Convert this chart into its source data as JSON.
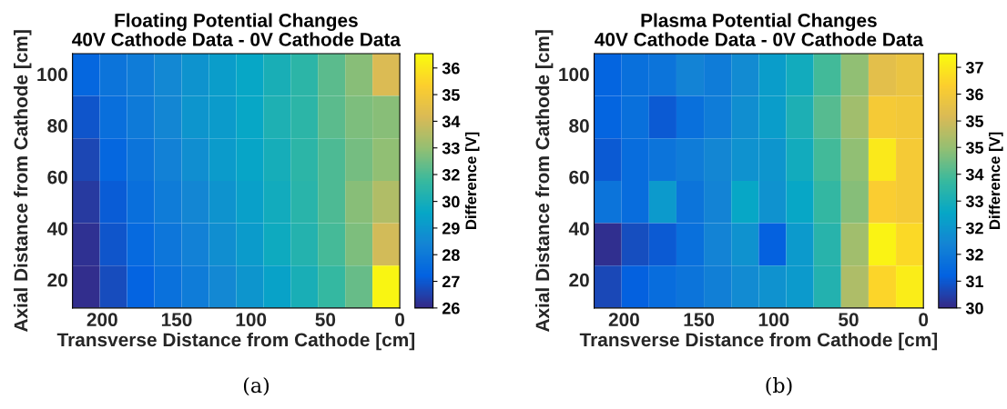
{
  "chart_data": [
    {
      "type": "heatmap",
      "title": "Floating Potential Changes\n40V Cathode Data - 0V Cathode Data",
      "xlabel": "Transverse Distance from Cathode [cm]",
      "ylabel": "Axial Distance from Cathode [cm]",
      "clabel": "Difference [V]",
      "xlim": [
        220,
        0
      ],
      "xticks": [
        200,
        150,
        100,
        50,
        0
      ],
      "ylim": [
        9,
        108
      ],
      "yticks": [
        20,
        40,
        60,
        80,
        100
      ],
      "clim": [
        26,
        36.6
      ],
      "cticks": [
        26,
        {
          "value": 27.11,
          "label": "27"
        },
        {
          "value": 28.22,
          "label": "28"
        },
        {
          "value": 29.33,
          "label": "29"
        },
        {
          "value": 30.44,
          "label": "30"
        },
        {
          "value": 31.56,
          "label": "32"
        },
        {
          "value": 32.67,
          "label": "33"
        },
        {
          "value": 33.78,
          "label": "34"
        },
        {
          "value": 34.89,
          "label": "35"
        },
        36
      ],
      "cells": [
        [
          27.5,
          28,
          28.3,
          28.8,
          29.2,
          29.6,
          30,
          30.5,
          31,
          31.8,
          32.5,
          34
        ],
        [
          27,
          27.8,
          28.2,
          28.7,
          29.3,
          29.5,
          30,
          30.6,
          31,
          31.8,
          32.3,
          32.5
        ],
        [
          26.7,
          27.5,
          28,
          28.5,
          29,
          29.5,
          29.9,
          30.4,
          31,
          31.6,
          32.2,
          32.6
        ],
        [
          26.4,
          27.2,
          27.8,
          28.3,
          28.7,
          29.2,
          29.7,
          30.3,
          30.9,
          31.6,
          32.5,
          33.2
        ],
        [
          26.2,
          27,
          27.6,
          28.1,
          28.5,
          29,
          29.5,
          30.2,
          30.8,
          31.5,
          32.3,
          33.8
        ],
        [
          26.1,
          26.8,
          27.4,
          27.9,
          28.3,
          28.8,
          29.3,
          29.8,
          30.5,
          31.2,
          32,
          36.4
        ]
      ],
      "annotations": [
        "(a)"
      ]
    },
    {
      "type": "heatmap",
      "title": "Plasma Potential Changes\n40V Cathode Data - 0V Cathode Data",
      "xlabel": "Transverse Distance from Cathode [cm]",
      "ylabel": "Axial Distance from Cathode [cm]",
      "clabel": "Difference [V]",
      "xlim": [
        220,
        0
      ],
      "xticks": [
        200,
        150,
        100,
        50,
        0
      ],
      "ylim": [
        9,
        108
      ],
      "yticks": [
        20,
        40,
        60,
        80,
        100
      ],
      "clim": [
        30,
        37.4
      ],
      "cticks": [
        30,
        {
          "value": 30.78,
          "label": "31"
        },
        {
          "value": 31.56,
          "label": "32"
        },
        {
          "value": 32.33,
          "label": "32"
        },
        {
          "value": 33.11,
          "label": "33"
        },
        {
          "value": 33.89,
          "label": "34"
        },
        {
          "value": 34.67,
          "label": "35"
        },
        {
          "value": 35.44,
          "label": "35"
        },
        {
          "value": 36.22,
          "label": "36"
        },
        37
      ],
      "cells": [
        [
          31,
          31.3,
          31.4,
          31.8,
          31.6,
          32,
          32.5,
          33,
          33.8,
          34.6,
          35.8,
          36
        ],
        [
          31,
          31.3,
          30.8,
          31.3,
          31.6,
          32.1,
          32.5,
          33.2,
          34,
          34.8,
          36.3,
          36.2
        ],
        [
          30.8,
          31.2,
          31.4,
          31.6,
          31.9,
          32.2,
          32.3,
          33,
          33.8,
          34.6,
          37,
          36.3
        ],
        [
          31.4,
          31.2,
          32.4,
          31.4,
          31.8,
          32.8,
          32.2,
          32.8,
          33.6,
          34.5,
          36.4,
          36.3
        ],
        [
          30.1,
          30.6,
          30.8,
          31.3,
          31.8,
          32.2,
          30.9,
          32.4,
          33.4,
          34.8,
          37.2,
          36.7
        ],
        [
          30.5,
          30.9,
          31.2,
          31.4,
          31.7,
          32,
          32.2,
          32.4,
          33.3,
          35,
          36.6,
          37.1
        ]
      ],
      "annotations": [
        "(b)"
      ]
    }
  ]
}
